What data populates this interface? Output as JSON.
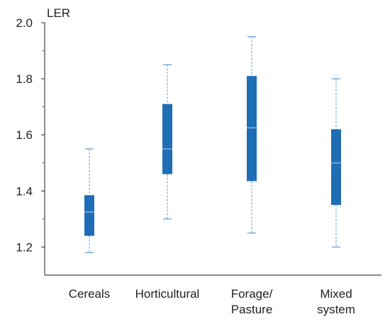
{
  "chart_data": {
    "type": "boxplot",
    "title": "",
    "xlabel": "",
    "ylabel": "LER",
    "ylim": [
      1.1,
      2.0
    ],
    "yticks": [
      "1.2",
      "1.4",
      "1.6",
      "1.8",
      "2.0"
    ],
    "grid": false,
    "categories": [
      {
        "lines": [
          "Cereals"
        ]
      },
      {
        "lines": [
          "Horticultural"
        ]
      },
      {
        "lines": [
          "Forage/",
          "Pasture"
        ]
      },
      {
        "lines": [
          "Mixed",
          "system"
        ]
      }
    ],
    "boxes": [
      {
        "min": 1.18,
        "q1": 1.24,
        "median": 1.325,
        "q3": 1.385,
        "max": 1.55
      },
      {
        "min": 1.3,
        "q1": 1.46,
        "median": 1.55,
        "q3": 1.71,
        "max": 1.85
      },
      {
        "min": 1.25,
        "q1": 1.435,
        "median": 1.625,
        "q3": 1.81,
        "max": 1.95
      },
      {
        "min": 1.2,
        "q1": 1.35,
        "median": 1.5,
        "q3": 1.62,
        "max": 1.8
      }
    ],
    "colors": {
      "box": "#1f6db5",
      "whisker": "#5b9bd5",
      "median": "#9cc3e6",
      "axis": "#444444"
    }
  }
}
